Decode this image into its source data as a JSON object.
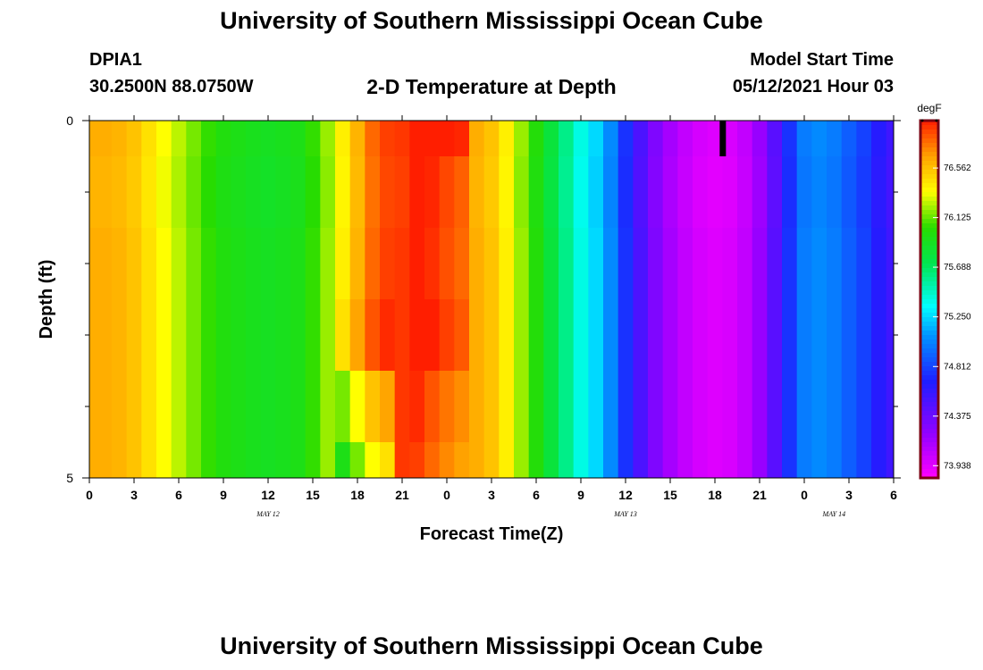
{
  "header": {
    "title": "University of Southern Mississippi Ocean Cube",
    "station": "DPIA1",
    "coords": "30.2500N  88.0750W",
    "subtitle": "2-D Temperature at Depth",
    "start_label": "Model Start Time",
    "start_time": "05/12/2021 Hour 03"
  },
  "footer": {
    "title": "University of Southern Mississippi Ocean Cube"
  },
  "chart_data": {
    "type": "heatmap",
    "title": "2-D Temperature at Depth",
    "xlabel": "Forecast Time(Z)",
    "ylabel": "Depth (ft)",
    "x_tick_labels": [
      "0",
      "3",
      "6",
      "9",
      "12",
      "15",
      "18",
      "21",
      "0",
      "3",
      "6",
      "9",
      "12",
      "15",
      "18",
      "21",
      "0",
      "3",
      "6"
    ],
    "date_labels": [
      "MAY 12",
      "MAY 13",
      "MAY 14"
    ],
    "y_tick_labels": [
      "0",
      "5"
    ],
    "ylim": [
      0,
      5
    ],
    "x_unit": "hours since 2021-05-12 00Z",
    "xlim": [
      0,
      54
    ],
    "colorbar": {
      "unit": "degF",
      "min": 73.83,
      "max": 76.98,
      "tick_values": [
        76.562,
        76.125,
        75.688,
        75.25,
        74.812,
        74.375,
        73.938
      ],
      "tick_labels": [
        "76.562",
        "76.125",
        "75.688",
        "75.250",
        "74.812",
        "74.375",
        "73.938"
      ]
    },
    "time_hours": [
      0,
      1,
      2,
      3,
      4,
      5,
      6,
      7,
      8,
      9,
      10,
      11,
      12,
      13,
      14,
      15,
      16,
      17,
      18,
      19,
      20,
      21,
      22,
      23,
      24,
      25,
      26,
      27,
      28,
      29,
      30,
      31,
      32,
      33,
      34,
      35,
      36,
      37,
      38,
      39,
      40,
      41,
      42,
      43,
      44,
      45,
      46,
      47,
      48,
      49,
      50,
      51,
      52,
      53,
      54
    ],
    "depth_ft": [
      0.25,
      1.0,
      2.0,
      3.0,
      4.0,
      4.75
    ],
    "base_temperature_degF": [
      76.62,
      76.62,
      76.6,
      76.55,
      76.45,
      76.35,
      76.25,
      76.15,
      76.05,
      75.98,
      75.95,
      75.92,
      75.9,
      75.92,
      75.95,
      76.05,
      76.2,
      76.4,
      76.6,
      76.8,
      76.9,
      76.92,
      76.9,
      76.8,
      76.72,
      76.66,
      76.62,
      76.55,
      76.4,
      76.2,
      76.0,
      75.8,
      75.6,
      75.4,
      75.25,
      75.05,
      74.75,
      74.5,
      74.3,
      74.15,
      74.05,
      73.98,
      73.95,
      73.97,
      74.05,
      74.2,
      74.45,
      74.75,
      75.0,
      75.05,
      75.0,
      74.9,
      74.8,
      74.65,
      74.55
    ],
    "depth_offset_degF": [
      0.0,
      -0.02,
      0.0,
      0.0,
      0.0,
      0.0
    ],
    "surface_warm_offset_degF": [
      0.3,
      0.18,
      0.14,
      0.18,
      0.05,
      0.0
    ],
    "surface_warm_hours": [
      22,
      25
    ],
    "cool_anomaly_hours": [
      17,
      20
    ],
    "cool_anomaly_offset_degF": [
      0.0,
      0.0,
      0.0,
      0.05,
      -0.25,
      -0.45
    ],
    "marker": {
      "time_hour": 42.5,
      "depth_from": 0,
      "depth_to": 0.5,
      "color": "#000000"
    }
  },
  "colors": {
    "background": "#ffffff",
    "text": "#000000",
    "colorbar_border": "#7a0012"
  }
}
